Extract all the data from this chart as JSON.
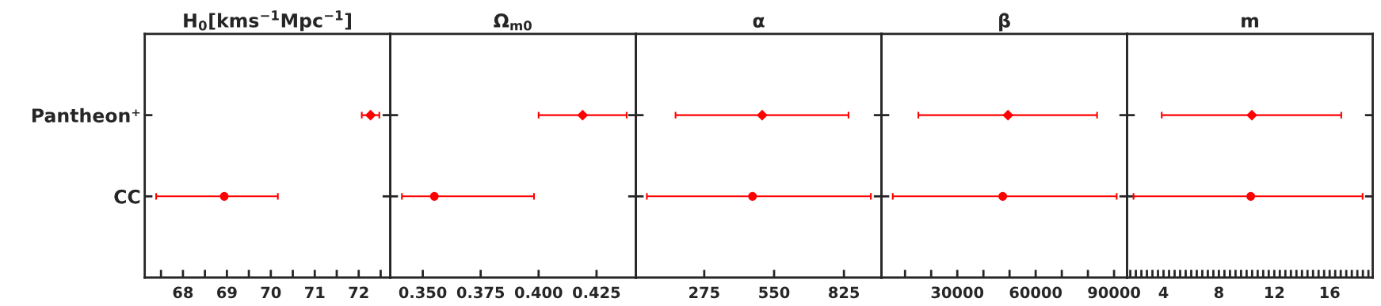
{
  "chart_data": [
    {
      "type": "scatter",
      "orientation": "horizontal",
      "title": "H$_{0}$[kms$^{−1}$Mpc$^{−1}$]",
      "categories": [
        "Pantheon⁺",
        "CC"
      ],
      "series": [
        {
          "color": "#ff0000",
          "marker": "diamond",
          "values": [
            72.27,
            null
          ],
          "errors": [
            [
              72.07,
              72.47
            ],
            null
          ]
        },
        {
          "color": "#ff0000",
          "marker": "circle",
          "values": [
            null,
            68.94
          ],
          "errors": [
            null,
            [
              67.39,
              70.16
            ]
          ]
        }
      ],
      "xlim": [
        67.13,
        72.72
      ],
      "xticks": [
        {
          "value": 67.5,
          "label": null
        },
        68,
        {
          "value": 68.5,
          "label": null
        },
        69,
        {
          "value": 69.5,
          "label": null
        },
        70,
        {
          "value": 70.5,
          "label": null
        },
        71,
        {
          "value": 71.5,
          "label": null
        },
        72,
        {
          "value": 72.5,
          "label": null
        }
      ]
    },
    {
      "type": "scatter",
      "orientation": "horizontal",
      "title": "Ω$_{m0}$",
      "categories": [
        null,
        null
      ],
      "tick_labels": "x",
      "series": [
        {
          "color": "#ff0000",
          "marker": "diamond",
          "values": [
            0.419,
            null
          ],
          "errors": [
            [
              0.4,
              0.438
            ],
            null
          ]
        },
        {
          "color": "#ff0000",
          "marker": "circle",
          "values": [
            null,
            0.355
          ],
          "errors": [
            null,
            [
              0.341,
              0.398
            ]
          ]
        }
      ],
      "xlim": [
        0.336,
        0.442
      ],
      "xticks": [
        {
          "value": 0.35,
          "label": "0.350"
        },
        0.375,
        {
          "value": 0.4,
          "label": "0.400"
        },
        0.425
      ]
    },
    {
      "type": "scatter",
      "orientation": "horizontal",
      "title": "α",
      "categories": [
        null,
        null
      ],
      "tick_labels": "x",
      "series": [
        {
          "color": "#ff0000",
          "marker": "diamond",
          "values": [
            503,
            null
          ],
          "errors": [
            [
              162,
              843
            ],
            null
          ]
        },
        {
          "color": "#ff0000",
          "marker": "circle",
          "values": [
            null,
            465
          ],
          "errors": [
            null,
            [
              49,
              931
            ]
          ]
        }
      ],
      "xlim": [
        6,
        973
      ],
      "xticks": [
        275,
        550,
        825
      ]
    },
    {
      "type": "scatter",
      "orientation": "horizontal",
      "title": "β",
      "categories": [
        null,
        null
      ],
      "tick_labels": "x",
      "series": [
        {
          "color": "#ff0000",
          "marker": "diamond",
          "values": [
            49400,
            null
          ],
          "errors": [
            [
              15100,
              83500
            ],
            null
          ]
        },
        {
          "color": "#ff0000",
          "marker": "circle",
          "values": [
            null,
            47400
          ],
          "errors": [
            null,
            [
              5300,
              91000
            ]
          ]
        }
      ],
      "xlim": [
        1000,
        95000
      ],
      "xticks": [
        {
          "value": 10000,
          "label": null
        },
        {
          "value": 20000,
          "label": null
        },
        30000,
        {
          "value": 40000,
          "label": null
        },
        {
          "value": 50000,
          "label": null
        },
        60000,
        {
          "value": 70000,
          "label": null
        },
        {
          "value": 80000,
          "label": null
        },
        90000
      ]
    },
    {
      "type": "scatter",
      "orientation": "horizontal",
      "title": "m",
      "categories": [
        null,
        null
      ],
      "tick_labels": "x",
      "series": [
        {
          "color": "#ff0000",
          "marker": "diamond",
          "values": [
            10.38,
            null
          ],
          "errors": [
            [
              3.87,
              16.84
            ],
            null
          ]
        },
        {
          "color": "#ff0000",
          "marker": "circle",
          "values": [
            null,
            10.3
          ],
          "errors": [
            null,
            [
              1.83,
              18.38
            ]
          ]
        }
      ],
      "xlim": [
        1.37,
        19.11
      ],
      "xticks": [
        {
          "value": 1.6,
          "label": null
        },
        {
          "value": 2.0,
          "label": null
        },
        {
          "value": 2.4,
          "label": null
        },
        {
          "value": 2.8,
          "label": null
        },
        {
          "value": 3.2,
          "label": null
        },
        {
          "value": 3.6,
          "label": null
        },
        4,
        {
          "value": 4.4,
          "label": null
        },
        {
          "value": 4.8,
          "label": null
        },
        {
          "value": 5.2,
          "label": null
        },
        {
          "value": 5.6,
          "label": null
        },
        {
          "value": 6.0,
          "label": null
        },
        {
          "value": 6.4,
          "label": null
        },
        {
          "value": 6.8,
          "label": null
        },
        {
          "value": 7.2,
          "label": null
        },
        {
          "value": 7.6,
          "label": null
        },
        8,
        {
          "value": 8.4,
          "label": null
        },
        {
          "value": 8.8,
          "label": null
        },
        {
          "value": 9.2,
          "label": null
        },
        {
          "value": 9.6,
          "label": null
        },
        {
          "value": 10.0,
          "label": null
        },
        {
          "value": 10.4,
          "label": null
        },
        {
          "value": 10.8,
          "label": null
        },
        {
          "value": 11.2,
          "label": null
        },
        {
          "value": 11.6,
          "label": null
        },
        12,
        {
          "value": 12.4,
          "label": null
        },
        {
          "value": 12.8,
          "label": null
        },
        {
          "value": 13.2,
          "label": null
        },
        {
          "value": 13.6,
          "label": null
        },
        {
          "value": 14.0,
          "label": null
        },
        {
          "value": 14.4,
          "label": null
        },
        {
          "value": 14.8,
          "label": null
        },
        {
          "value": 15.2,
          "label": null
        },
        {
          "value": 15.6,
          "label": null
        },
        16,
        {
          "value": 16.4,
          "label": null
        },
        {
          "value": 16.8,
          "label": null
        },
        {
          "value": 17.2,
          "label": null
        },
        {
          "value": 17.6,
          "label": null
        },
        {
          "value": 18.0,
          "label": null
        },
        {
          "value": 18.4,
          "label": null
        },
        {
          "value": 18.8,
          "label": null
        }
      ]
    }
  ]
}
